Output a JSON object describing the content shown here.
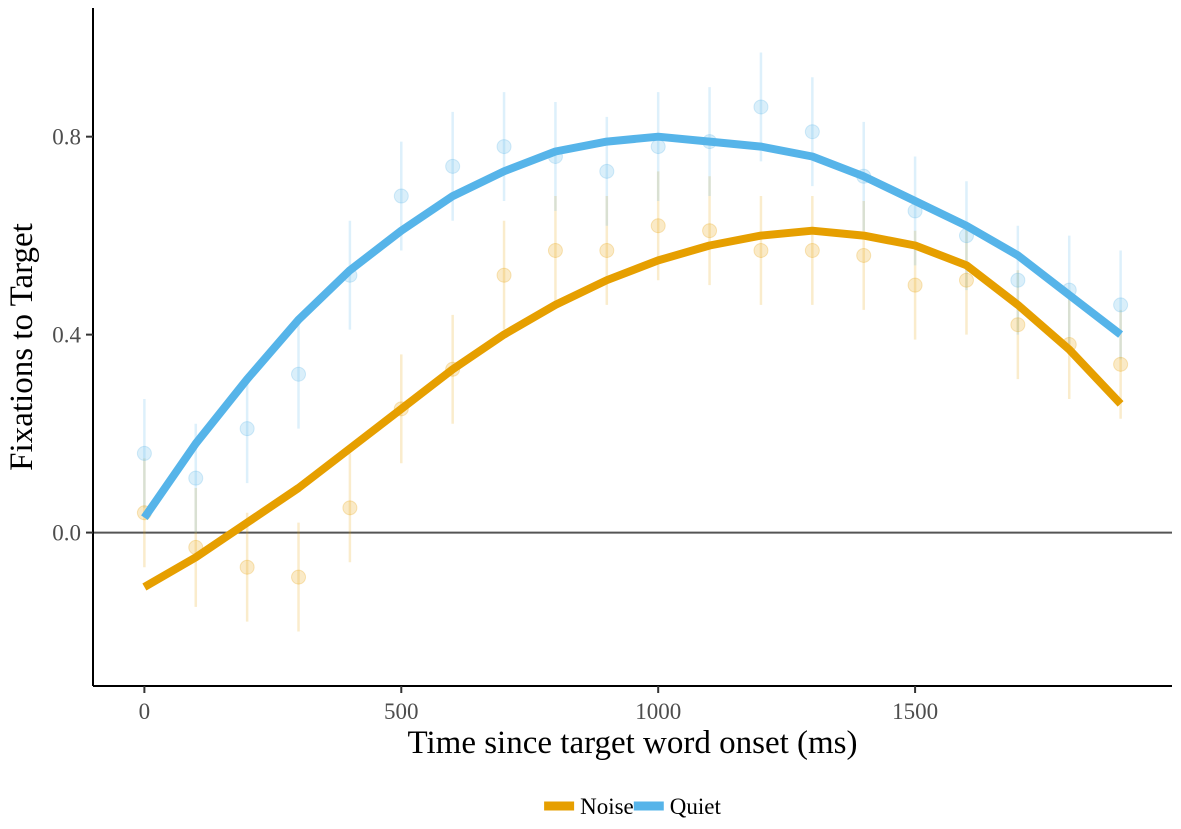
{
  "chart_data": {
    "type": "line",
    "title": "",
    "xlabel": "Time since target word onset (ms)",
    "ylabel": "Fixations to Target",
    "xlim": [
      -100,
      2000
    ],
    "ylim": [
      -0.31,
      1.06
    ],
    "xticks": [
      0,
      500,
      1000,
      1500
    ],
    "xtick_labels": [
      "0",
      "500",
      "1000",
      "1500"
    ],
    "yticks": [
      0.0,
      0.4,
      0.8
    ],
    "ytick_labels": [
      "0.0",
      "0.4",
      "0.8"
    ],
    "reference_line_y": 0.0,
    "grid": false,
    "legend_position": "bottom",
    "series": [
      {
        "name": "Noise",
        "color": "#E69F00",
        "x": [
          0,
          100,
          200,
          300,
          400,
          500,
          600,
          700,
          800,
          900,
          1000,
          1100,
          1200,
          1300,
          1400,
          1500,
          1600,
          1700,
          1800,
          1900
        ],
        "observed": [
          0.04,
          -0.03,
          -0.07,
          -0.09,
          0.05,
          0.25,
          0.33,
          0.52,
          0.57,
          0.57,
          0.62,
          0.61,
          0.57,
          0.57,
          0.56,
          0.5,
          0.51,
          0.42,
          0.38,
          0.34
        ],
        "error_low": [
          -0.07,
          -0.15,
          -0.18,
          -0.2,
          -0.06,
          0.14,
          0.22,
          0.41,
          0.46,
          0.46,
          0.51,
          0.5,
          0.46,
          0.46,
          0.45,
          0.39,
          0.4,
          0.31,
          0.27,
          0.23
        ],
        "error_high": [
          0.15,
          0.09,
          0.04,
          0.02,
          0.16,
          0.36,
          0.44,
          0.63,
          0.68,
          0.68,
          0.73,
          0.72,
          0.68,
          0.68,
          0.67,
          0.61,
          0.62,
          0.53,
          0.49,
          0.45
        ],
        "fitted": [
          -0.11,
          -0.05,
          0.02,
          0.09,
          0.17,
          0.25,
          0.33,
          0.4,
          0.46,
          0.51,
          0.55,
          0.58,
          0.6,
          0.61,
          0.6,
          0.58,
          0.54,
          0.46,
          0.37,
          0.26
        ]
      },
      {
        "name": "Quiet",
        "color": "#56B4E9",
        "x": [
          0,
          100,
          200,
          300,
          400,
          500,
          600,
          700,
          800,
          900,
          1000,
          1100,
          1200,
          1300,
          1400,
          1500,
          1600,
          1700,
          1800,
          1900
        ],
        "observed": [
          0.16,
          0.11,
          0.21,
          0.32,
          0.52,
          0.68,
          0.74,
          0.78,
          0.76,
          0.73,
          0.78,
          0.79,
          0.86,
          0.81,
          0.72,
          0.65,
          0.6,
          0.51,
          0.49,
          0.46
        ],
        "error_low": [
          0.05,
          0.0,
          0.1,
          0.21,
          0.41,
          0.57,
          0.63,
          0.67,
          0.65,
          0.62,
          0.67,
          0.68,
          0.75,
          0.7,
          0.61,
          0.54,
          0.49,
          0.4,
          0.38,
          0.35
        ],
        "error_high": [
          0.27,
          0.22,
          0.32,
          0.43,
          0.63,
          0.79,
          0.85,
          0.89,
          0.87,
          0.84,
          0.89,
          0.9,
          0.97,
          0.92,
          0.83,
          0.76,
          0.71,
          0.62,
          0.6,
          0.57
        ],
        "fitted": [
          0.03,
          0.18,
          0.31,
          0.43,
          0.53,
          0.61,
          0.68,
          0.73,
          0.77,
          0.79,
          0.8,
          0.79,
          0.78,
          0.76,
          0.72,
          0.67,
          0.62,
          0.56,
          0.48,
          0.4
        ]
      }
    ]
  }
}
